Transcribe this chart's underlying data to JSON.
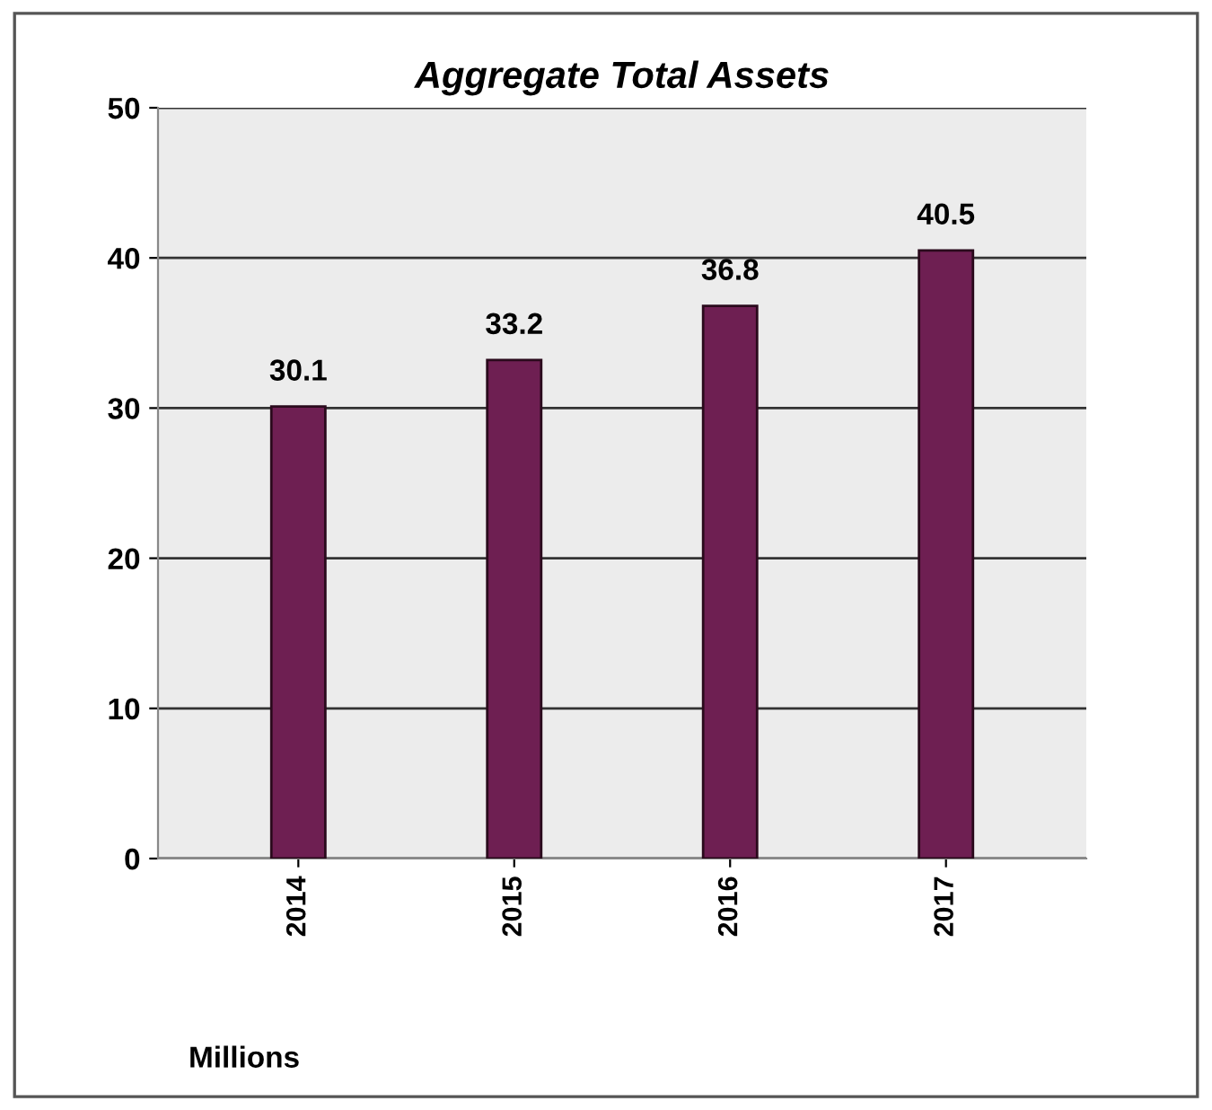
{
  "chart_data": {
    "type": "bar",
    "title": "Aggregate Total Assets",
    "categories": [
      "2014",
      "2015",
      "2016",
      "2017"
    ],
    "values": [
      30.1,
      33.2,
      36.8,
      40.5
    ],
    "color": "#6e1f52",
    "ylim": [
      0,
      50
    ],
    "yticks": [
      0,
      10,
      20,
      30,
      40,
      50
    ],
    "grid": "y",
    "data_labels": true,
    "annotations": [
      "Millions"
    ]
  }
}
